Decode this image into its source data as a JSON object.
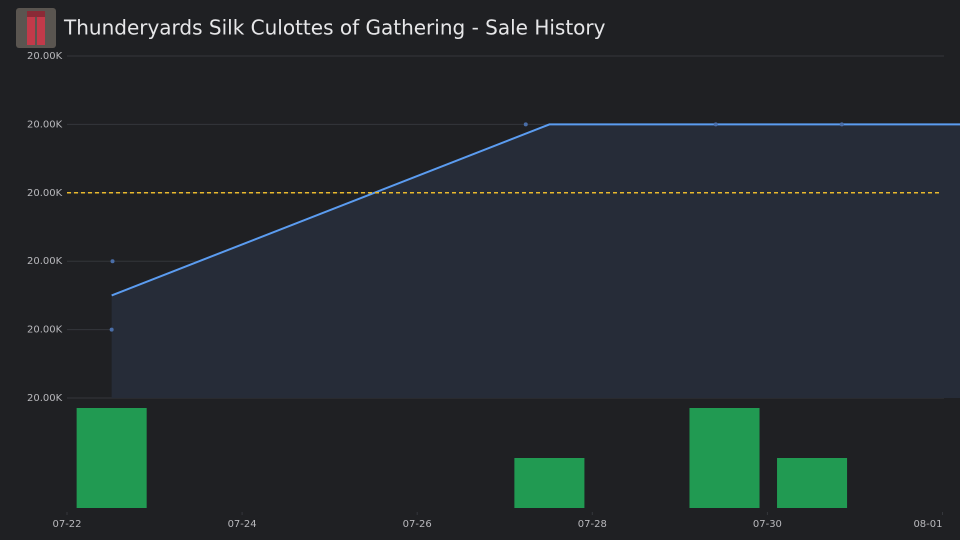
{
  "chart_data": [
    {
      "type": "line",
      "title": "Thunderyards Silk Culottes of Gathering - Sale History",
      "series": [
        {
          "color": "#5b9cf0",
          "x": [
            0.51,
            5.51,
            10.2
          ],
          "values": [
            19997.5,
            20000,
            20000
          ]
        }
      ],
      "points": {
        "color": "#4a6ea8",
        "x": [
          0.52,
          0.51,
          5.24,
          7.41,
          8.85
        ],
        "values": [
          19998,
          19997,
          20000,
          20000,
          20000
        ]
      },
      "reference_line": {
        "value": 19999,
        "color": "#e8b92e"
      },
      "xlim": [
        0,
        10.2
      ],
      "ylim": [
        19996,
        20001
      ],
      "yticks": [
        {
          "value": 19996,
          "label": "20.00K"
        },
        {
          "value": 19997,
          "label": "20.00K"
        },
        {
          "value": 19998,
          "label": "20.00K"
        },
        {
          "value": 19999,
          "label": "20.00K"
        },
        {
          "value": 20000,
          "label": "20.00K"
        },
        {
          "value": 20001,
          "label": "20.00K"
        }
      ],
      "grid": true
    },
    {
      "type": "bar",
      "x": [
        0.51,
        5.51,
        7.51,
        8.51
      ],
      "values": [
        2,
        1,
        2,
        1
      ],
      "color": "#219a52",
      "xlim": [
        0,
        10.2
      ],
      "ylim": [
        0,
        2
      ],
      "xticks": [
        {
          "value": 0,
          "label": "07-22"
        },
        {
          "value": 2,
          "label": "07-24"
        },
        {
          "value": 4,
          "label": "07-26"
        },
        {
          "value": 6,
          "label": "07-28"
        },
        {
          "value": 8,
          "label": "07-30"
        },
        {
          "value": 10,
          "label": "08-01"
        }
      ]
    }
  ]
}
